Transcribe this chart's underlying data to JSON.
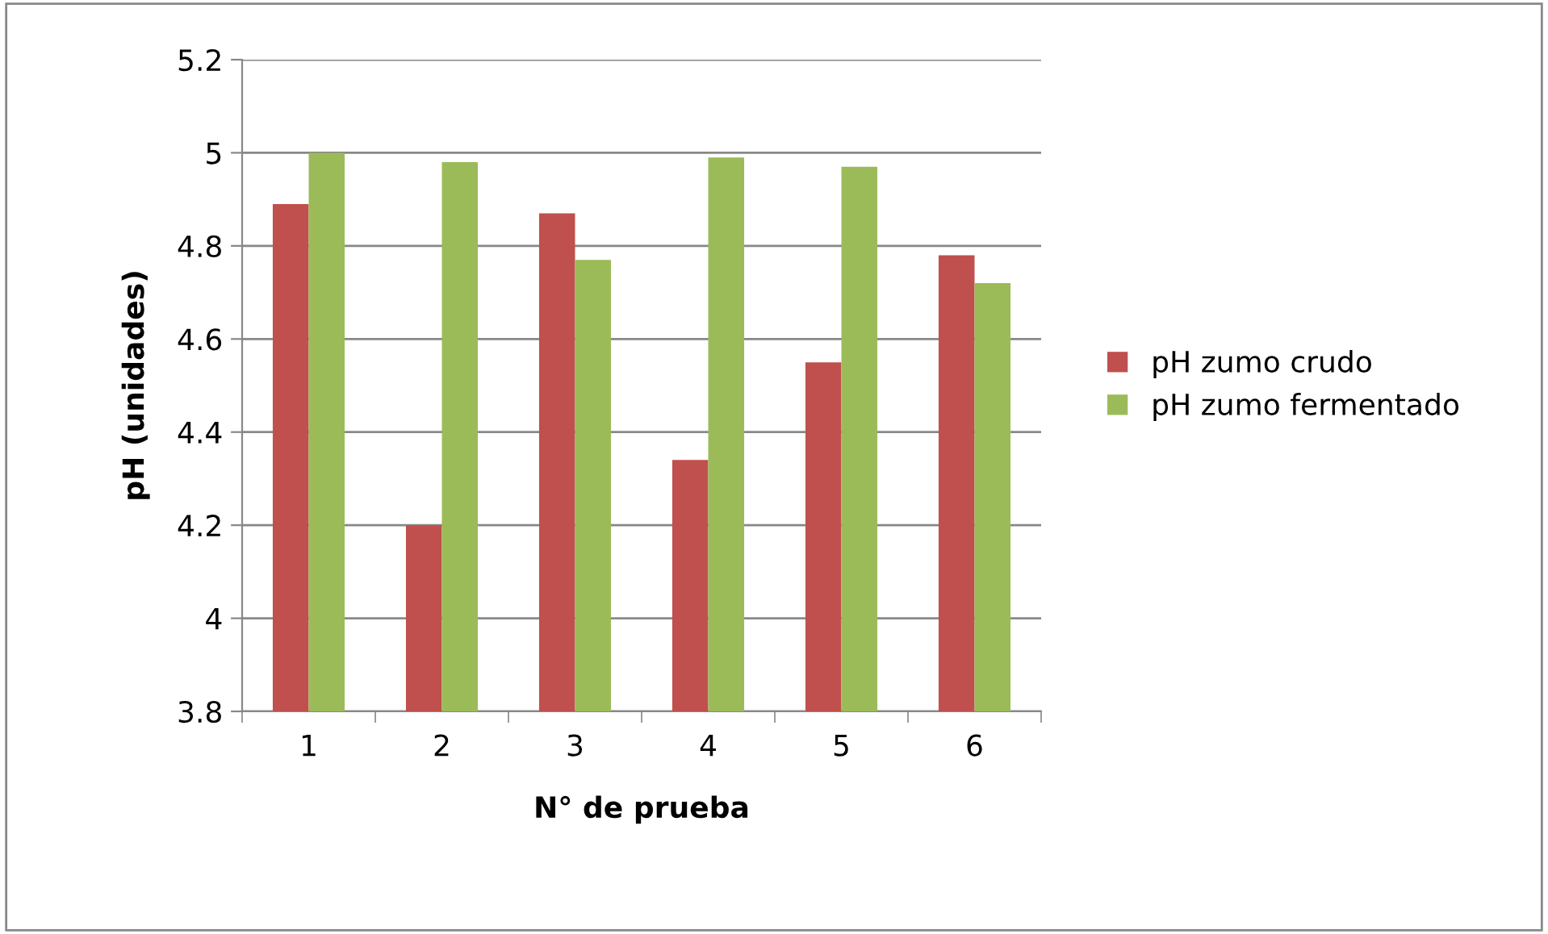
{
  "chart_data": {
    "type": "bar",
    "xlabel": "N° de prueba",
    "ylabel": "pH (unidades)",
    "categories": [
      "1",
      "2",
      "3",
      "4",
      "5",
      "6"
    ],
    "series": [
      {
        "name": "pH zumo crudo",
        "color": "#c0504d",
        "values": [
          4.89,
          4.2,
          4.87,
          4.34,
          4.55,
          4.78
        ]
      },
      {
        "name": "pH zumo fermentado",
        "color": "#9bbb59",
        "values": [
          5.0,
          4.98,
          4.77,
          4.99,
          4.97,
          4.72
        ]
      }
    ],
    "ylim": [
      3.8,
      5.2
    ],
    "yticks": [
      3.8,
      4,
      4.2,
      4.4,
      4.6,
      4.8,
      5,
      5.2
    ],
    "grid": "y",
    "legend": "right"
  }
}
